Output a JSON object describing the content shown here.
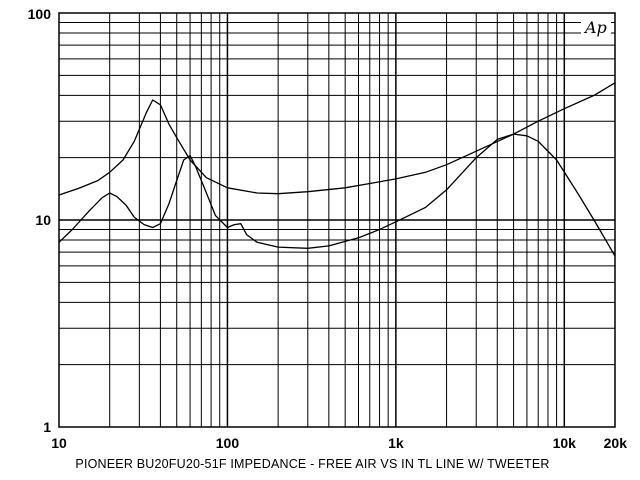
{
  "chart_data": {
    "type": "line",
    "title": "PIONEER BU20FU20-51F IMPEDANCE - FREE AIR VS IN TL LINE W/ TWEETER",
    "x_scale": "log",
    "y_scale": "log",
    "xlim": [
      10,
      20000
    ],
    "ylim": [
      1,
      100
    ],
    "grid": true,
    "logo": "Ap",
    "x_ticks": [
      {
        "value": 10,
        "label": "10"
      },
      {
        "value": 100,
        "label": "100"
      },
      {
        "value": 1000,
        "label": "1k"
      },
      {
        "value": 10000,
        "label": "10k"
      },
      {
        "value": 20000,
        "label": "20k"
      }
    ],
    "y_ticks": [
      {
        "value": 1,
        "label": "1"
      },
      {
        "value": 10,
        "label": "10"
      },
      {
        "value": 100,
        "label": "100"
      }
    ],
    "series": [
      {
        "x": [
          10,
          13,
          17,
          20,
          24,
          28,
          33,
          36,
          40,
          45,
          50,
          60,
          75,
          100,
          150,
          200,
          300,
          500,
          700,
          1000,
          1500,
          2000,
          3000,
          5000,
          7000,
          10000,
          15000,
          20000
        ],
        "y": [
          13.2,
          14.2,
          15.5,
          17,
          19.5,
          24,
          33,
          38,
          36,
          29,
          25,
          19.5,
          16,
          14.3,
          13.5,
          13.4,
          13.7,
          14.3,
          15,
          15.8,
          17,
          18.5,
          21.5,
          26,
          30,
          34.5,
          40,
          46
        ]
      },
      {
        "x": [
          10,
          12,
          15,
          18,
          20,
          22,
          25,
          28,
          32,
          36,
          40,
          45,
          50,
          55,
          60,
          65,
          75,
          85,
          100,
          110,
          120,
          130,
          150,
          200,
          300,
          400,
          600,
          800,
          1000,
          1500,
          2000,
          3000,
          4000,
          5000,
          6000,
          7000,
          9000,
          12000,
          15000,
          20000
        ],
        "y": [
          7.8,
          9,
          11,
          12.8,
          13.5,
          13,
          11.8,
          10.3,
          9.5,
          9.2,
          9.6,
          12,
          15.5,
          19.5,
          20.5,
          18,
          13.5,
          10.5,
          9.2,
          9.5,
          9.6,
          8.5,
          7.8,
          7.4,
          7.3,
          7.5,
          8.2,
          9,
          9.8,
          11.5,
          14,
          20,
          24.5,
          26,
          25.5,
          24,
          19.5,
          13.5,
          10,
          6.7
        ]
      }
    ]
  }
}
